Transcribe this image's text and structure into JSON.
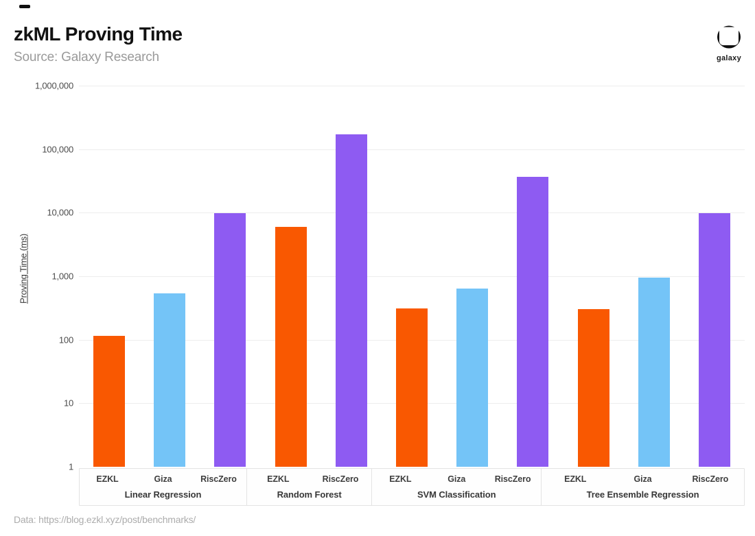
{
  "header": {
    "title": "zkML Proving Time",
    "subtitle": "Source: Galaxy Research",
    "logo_text": "galaxy"
  },
  "footer": {
    "text": "Data: https://blog.ezkl.xyz/post/benchmarks/"
  },
  "chart_data": {
    "type": "bar",
    "title": "zkML Proving Time",
    "subtitle": "Source: Galaxy Research",
    "ylabel": "Proving Time (ms)",
    "yscale": "log",
    "ylim": [
      1,
      1000000
    ],
    "yticks": [
      "1,000,000",
      "100,000",
      "10,000",
      "1,000",
      "100",
      "10",
      "1"
    ],
    "grid": true,
    "legend": "none",
    "series_colors": {
      "EZKL": "#f95801",
      "Giza": "#74c4f7",
      "RiscZero": "#8e5bf2"
    },
    "groups": [
      {
        "label": "Linear Regression",
        "bars": [
          {
            "name": "EZKL",
            "value": 115
          },
          {
            "name": "Giza",
            "value": 540
          },
          {
            "name": "RiscZero",
            "value": 9800
          }
        ]
      },
      {
        "label": "Random Forest",
        "bars": [
          {
            "name": "EZKL",
            "value": 6000
          },
          {
            "name": "RiscZero",
            "value": 170000
          }
        ]
      },
      {
        "label": "SVM Classification",
        "bars": [
          {
            "name": "EZKL",
            "value": 315
          },
          {
            "name": "Giza",
            "value": 640
          },
          {
            "name": "RiscZero",
            "value": 37000
          }
        ]
      },
      {
        "label": "Tree Ensemble Regression",
        "bars": [
          {
            "name": "EZKL",
            "value": 300
          },
          {
            "name": "Giza",
            "value": 950
          },
          {
            "name": "RiscZero",
            "value": 9800
          }
        ]
      }
    ]
  }
}
